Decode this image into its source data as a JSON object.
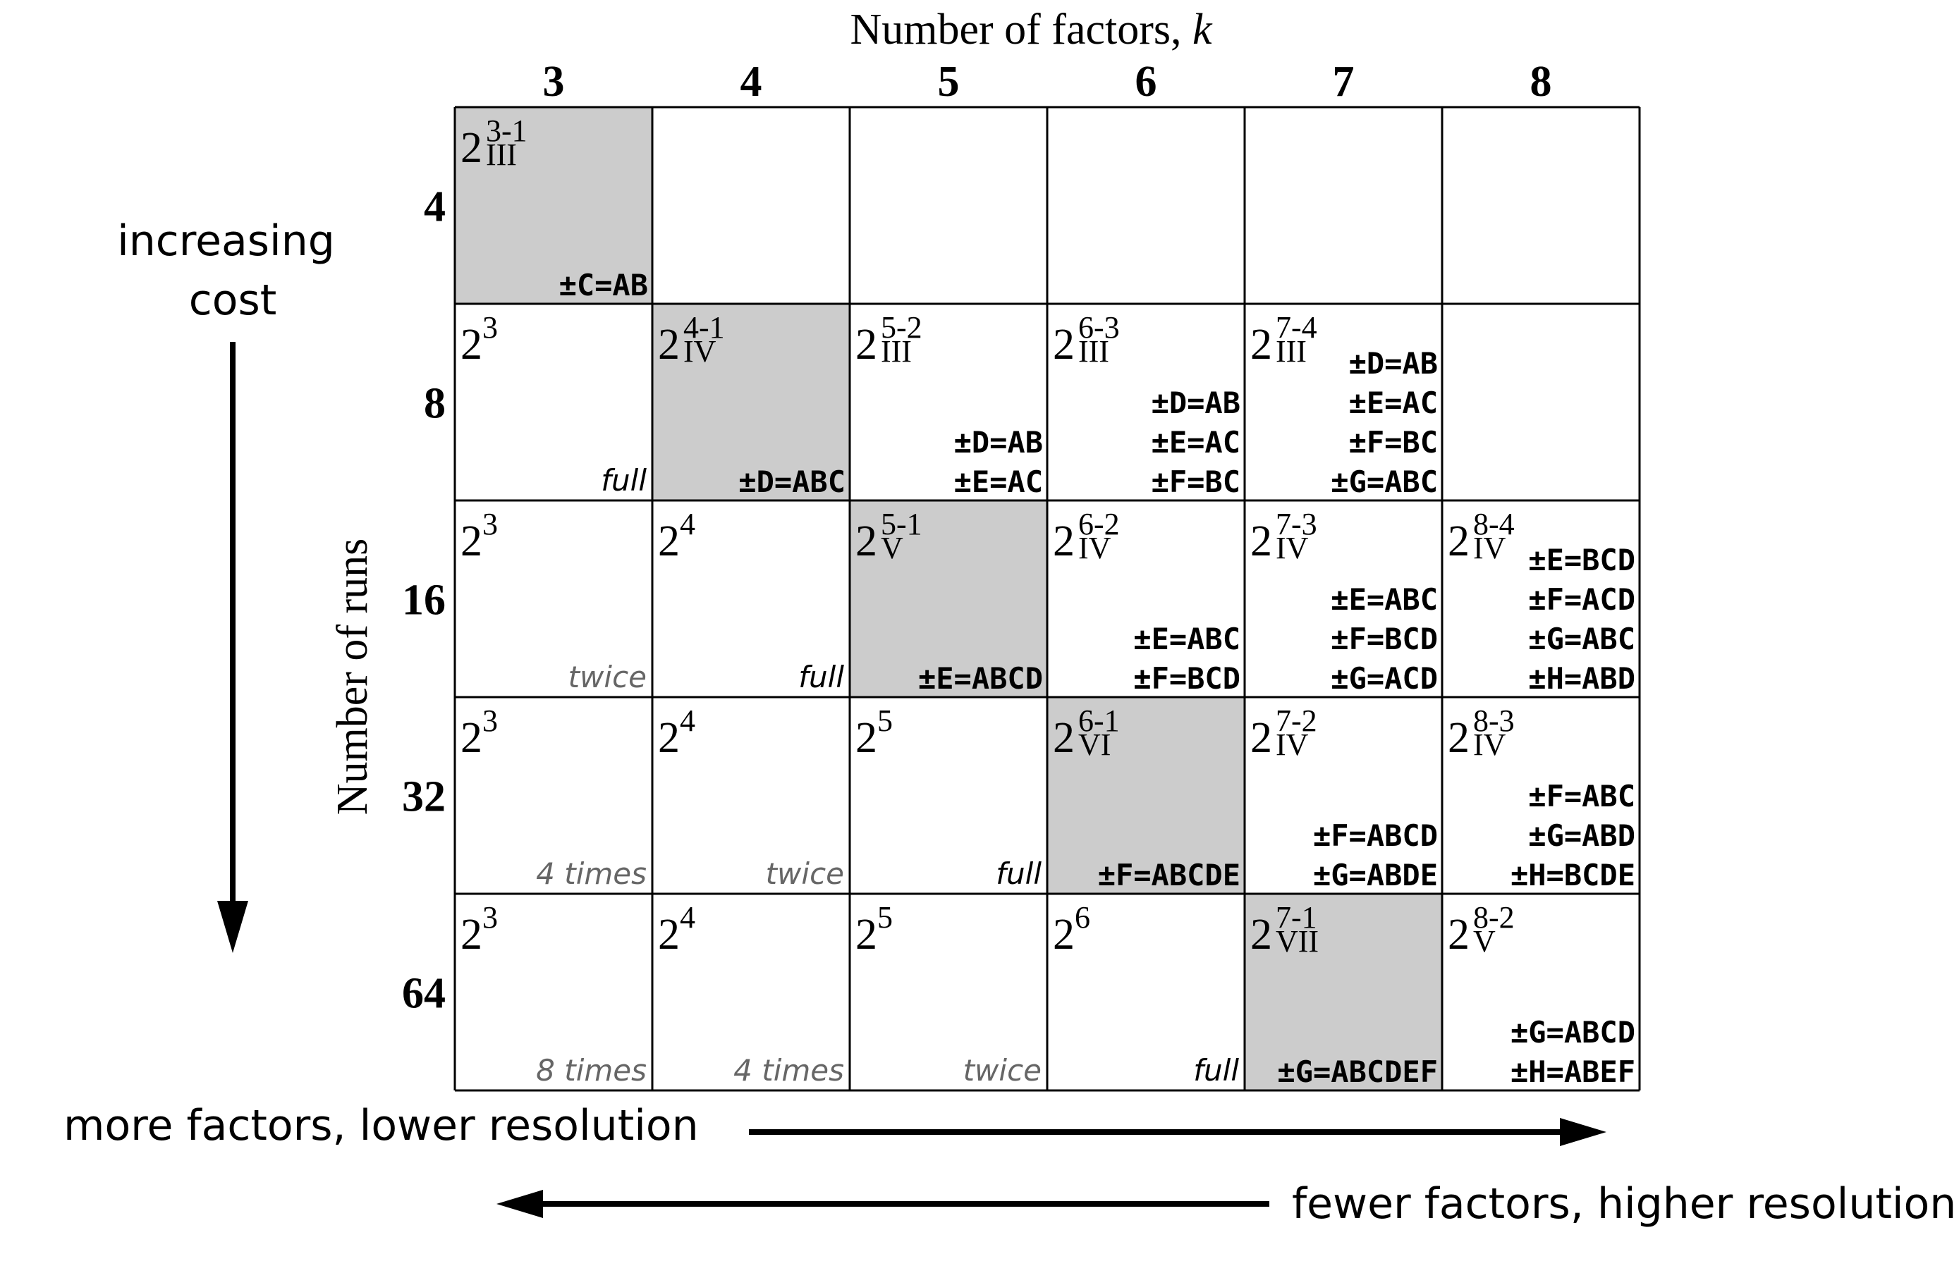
{
  "title_prefix": "Number of factors, ",
  "title_var": "k",
  "y_title": "Number of runs",
  "factors": [
    "3",
    "4",
    "5",
    "6",
    "7",
    "8"
  ],
  "runs": [
    "4",
    "8",
    "16",
    "32",
    "64"
  ],
  "left_arrow_label": [
    "increasing",
    "cost"
  ],
  "bottom_label_right": "more factors, lower resolution",
  "bottom_label_left": "fewer factors, higher resolution",
  "colors": {
    "shade": "#cccccc",
    "grid": "#000000",
    "rep_text": "#666666"
  },
  "cells": [
    {
      "row": 0,
      "col": 0,
      "base": "2",
      "sup": "3-1",
      "sub": "III",
      "gens": [
        "±C=AB"
      ],
      "gen_pos": "bottom",
      "rep": "",
      "shaded": true
    },
    {
      "row": 1,
      "col": 0,
      "base": "2",
      "sup": "3",
      "sub": "",
      "gens": [],
      "rep": "full",
      "shaded": false
    },
    {
      "row": 1,
      "col": 1,
      "base": "2",
      "sup": "4-1",
      "sub": "IV",
      "gens": [
        "±D=ABC"
      ],
      "gen_pos": "bottom",
      "rep": "",
      "shaded": true
    },
    {
      "row": 1,
      "col": 2,
      "base": "2",
      "sup": "5-2",
      "sub": "III",
      "gens": [
        "±D=AB",
        "±E=AC"
      ],
      "gen_pos": "bottom",
      "rep": "",
      "shaded": false
    },
    {
      "row": 1,
      "col": 3,
      "base": "2",
      "sup": "6-3",
      "sub": "III",
      "gens": [
        "±D=AB",
        "±E=AC",
        "±F=BC"
      ],
      "gen_pos": "bottom",
      "rep": "",
      "shaded": false
    },
    {
      "row": 1,
      "col": 4,
      "base": "2",
      "sup": "7-4",
      "sub": "III",
      "gens": [
        "±D=AB",
        "±E=AC",
        "±F=BC",
        "±G=ABC"
      ],
      "gen_pos": "bottom",
      "rep": "",
      "shaded": false
    },
    {
      "row": 2,
      "col": 0,
      "base": "2",
      "sup": "3",
      "sub": "",
      "gens": [],
      "rep": "twice",
      "rep_gray": true,
      "shaded": false
    },
    {
      "row": 2,
      "col": 1,
      "base": "2",
      "sup": "4",
      "sub": "",
      "gens": [],
      "rep": "full",
      "shaded": false
    },
    {
      "row": 2,
      "col": 2,
      "base": "2",
      "sup": "5-1",
      "sub": "V",
      "gens": [
        "±E=ABCD"
      ],
      "gen_pos": "bottom",
      "rep": "",
      "shaded": true
    },
    {
      "row": 2,
      "col": 3,
      "base": "2",
      "sup": "6-2",
      "sub": "IV",
      "gens": [
        "±E=ABC",
        "±F=BCD"
      ],
      "gen_pos": "bottom",
      "rep": "",
      "shaded": false
    },
    {
      "row": 2,
      "col": 4,
      "base": "2",
      "sup": "7-3",
      "sub": "IV",
      "gens": [
        "±E=ABC",
        "±F=BCD",
        "±G=ACD"
      ],
      "gen_pos": "bottom",
      "rep": "",
      "shaded": false
    },
    {
      "row": 2,
      "col": 5,
      "base": "2",
      "sup": "8-4",
      "sub": "IV",
      "gens": [
        "±E=BCD",
        "±F=ACD",
        "±G=ABC",
        "±H=ABD"
      ],
      "gen_pos": "bottom",
      "rep": "",
      "shaded": false
    },
    {
      "row": 3,
      "col": 0,
      "base": "2",
      "sup": "3",
      "sub": "",
      "gens": [],
      "rep": "4 times",
      "rep_gray": true,
      "shaded": false
    },
    {
      "row": 3,
      "col": 1,
      "base": "2",
      "sup": "4",
      "sub": "",
      "gens": [],
      "rep": "twice",
      "rep_gray": true,
      "shaded": false
    },
    {
      "row": 3,
      "col": 2,
      "base": "2",
      "sup": "5",
      "sub": "",
      "gens": [],
      "rep": "full",
      "shaded": false
    },
    {
      "row": 3,
      "col": 3,
      "base": "2",
      "sup": "6-1",
      "sub": "VI",
      "gens": [
        "±F=ABCDE"
      ],
      "gen_pos": "bottom",
      "rep": "",
      "shaded": true
    },
    {
      "row": 3,
      "col": 4,
      "base": "2",
      "sup": "7-2",
      "sub": "IV",
      "gens": [
        "±F=ABCD",
        "±G=ABDE"
      ],
      "gen_pos": "bottom",
      "rep": "",
      "shaded": false
    },
    {
      "row": 3,
      "col": 5,
      "base": "2",
      "sup": "8-3",
      "sub": "IV",
      "gens": [
        "±F=ABC",
        "±G=ABD",
        "±H=BCDE"
      ],
      "gen_pos": "bottom",
      "rep": "",
      "shaded": false
    },
    {
      "row": 4,
      "col": 0,
      "base": "2",
      "sup": "3",
      "sub": "",
      "gens": [],
      "rep": "8 times",
      "rep_gray": true,
      "shaded": false
    },
    {
      "row": 4,
      "col": 1,
      "base": "2",
      "sup": "4",
      "sub": "",
      "gens": [],
      "rep": "4 times",
      "rep_gray": true,
      "shaded": false
    },
    {
      "row": 4,
      "col": 2,
      "base": "2",
      "sup": "5",
      "sub": "",
      "gens": [],
      "rep": "twice",
      "rep_gray": true,
      "shaded": false
    },
    {
      "row": 4,
      "col": 3,
      "base": "2",
      "sup": "6",
      "sub": "",
      "gens": [],
      "rep": "full",
      "shaded": false
    },
    {
      "row": 4,
      "col": 4,
      "base": "2",
      "sup": "7-1",
      "sub": "VII",
      "gens": [
        "±G=ABCDEF"
      ],
      "gen_pos": "bottom",
      "rep": "",
      "shaded": true
    },
    {
      "row": 4,
      "col": 5,
      "base": "2",
      "sup": "8-2",
      "sub": "V",
      "gens": [
        "±G=ABCD",
        "±H=ABEF"
      ],
      "gen_pos": "bottom",
      "rep": "",
      "shaded": false
    }
  ]
}
